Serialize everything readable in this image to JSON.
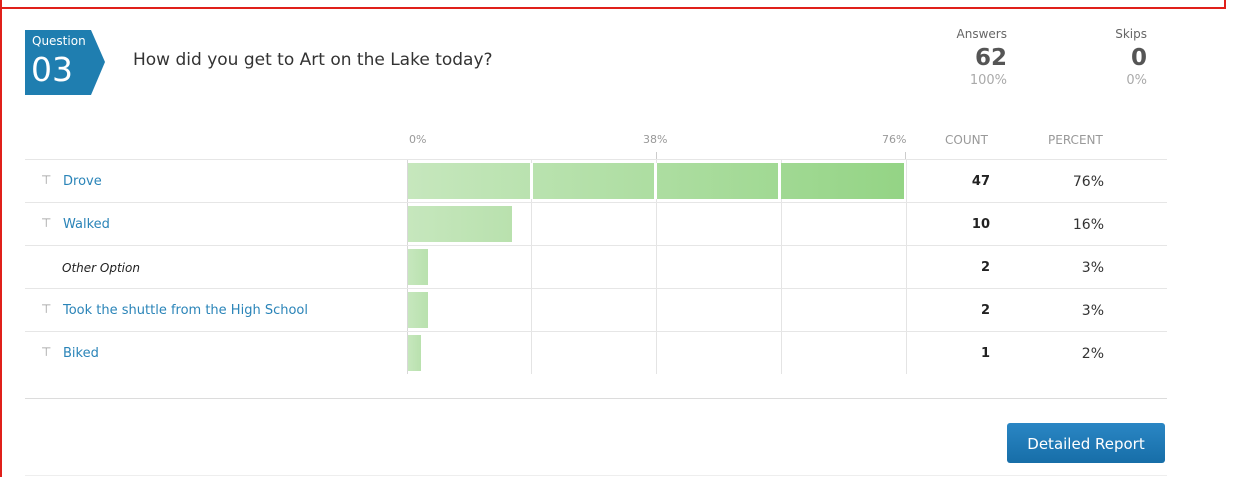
{
  "question": {
    "badge_label": "Question",
    "number": "03",
    "title": "How did you get to Art on the Lake today?"
  },
  "stats": {
    "answers_label": "Answers",
    "answers_count": "62",
    "answers_percent": "100%",
    "skips_label": "Skips",
    "skips_count": "0",
    "skips_percent": "0%"
  },
  "table": {
    "count_header": "COUNT",
    "percent_header": "PERCENT",
    "axis_ticks": [
      "0%",
      "38%",
      "76%"
    ]
  },
  "colors": {
    "bar_light": "#c6e7bd",
    "bar_dark": "#94d485",
    "link": "#2a84b8",
    "button": "#1f7ab5"
  },
  "chart_data": {
    "type": "bar",
    "orientation": "horizontal",
    "title": "How did you get to Art on the Lake today?",
    "categories": [
      "Drove",
      "Walked",
      "Other Option",
      "Took the shuttle from the High School",
      "Biked"
    ],
    "counts": [
      47,
      10,
      2,
      2,
      1
    ],
    "percents": [
      "76%",
      "16%",
      "3%",
      "3%",
      "2%"
    ],
    "values": [
      76,
      16,
      3,
      3,
      2
    ],
    "xlim": [
      0,
      76
    ],
    "x_ticks": [
      "0%",
      "38%",
      "76%"
    ],
    "grid": true
  },
  "button": {
    "detailed_report": "Detailed Report"
  }
}
